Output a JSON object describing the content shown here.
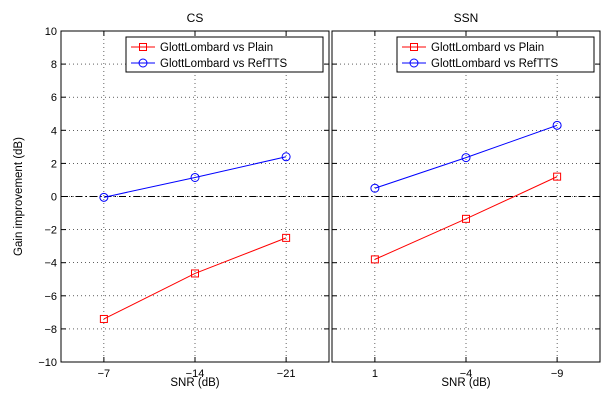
{
  "chart_data": [
    {
      "type": "line",
      "title": "CS",
      "xlabel": "SNR (dB)",
      "ylabel": "Gain improvement (dB)",
      "categories": [
        "−7",
        "−14",
        "−21"
      ],
      "ylim": [
        -10,
        10
      ],
      "yticks": [
        -10,
        -8,
        -6,
        -4,
        -2,
        0,
        2,
        4,
        6,
        8,
        10
      ],
      "grid": true,
      "legend_position": "top-right",
      "series": [
        {
          "name": "GlottLombard vs Plain",
          "color": "#ff0000",
          "marker": "square",
          "values": [
            -7.4,
            -4.65,
            -2.5
          ]
        },
        {
          "name": "GlottLombard vs RefTTS",
          "color": "#0000ff",
          "marker": "circle",
          "values": [
            -0.05,
            1.15,
            2.4
          ]
        }
      ],
      "reference_line": {
        "y": 0,
        "style": "dash-dot",
        "color": "#000000"
      }
    },
    {
      "type": "line",
      "title": "SSN",
      "xlabel": "SNR (dB)",
      "ylabel": "",
      "categories": [
        "1",
        "−4",
        "−9"
      ],
      "ylim": [
        -10,
        10
      ],
      "yticks": [
        -10,
        -8,
        -6,
        -4,
        -2,
        0,
        2,
        4,
        6,
        8,
        10
      ],
      "grid": true,
      "legend_position": "top-right",
      "series": [
        {
          "name": "GlottLombard vs Plain",
          "color": "#ff0000",
          "marker": "square",
          "values": [
            -3.8,
            -1.35,
            1.2
          ]
        },
        {
          "name": "GlottLombard vs RefTTS",
          "color": "#0000ff",
          "marker": "circle",
          "values": [
            0.5,
            2.35,
            4.3
          ]
        }
      ],
      "reference_line": {
        "y": 0,
        "style": "dash-dot",
        "color": "#000000"
      }
    }
  ]
}
